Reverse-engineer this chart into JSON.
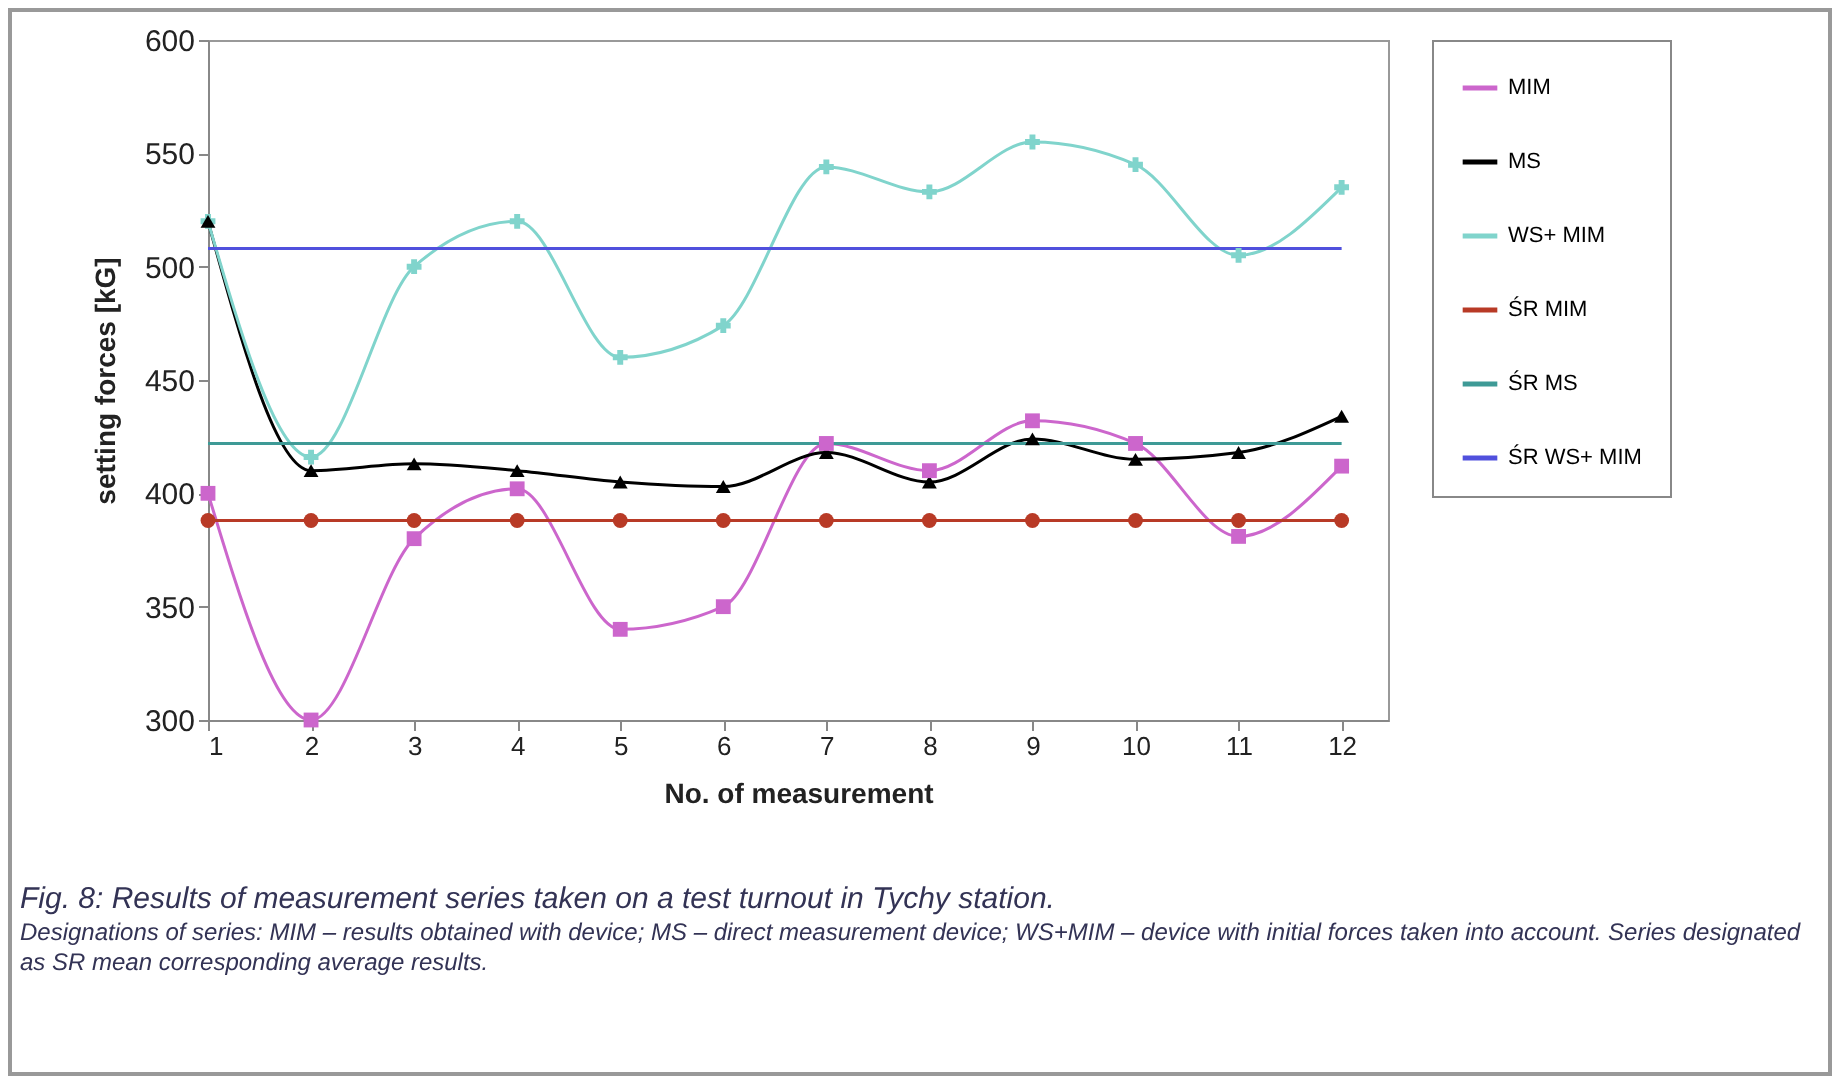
{
  "chart_data": {
    "type": "line",
    "xlabel": "No. of measurement",
    "ylabel": "setting forces [kG]",
    "x": [
      1,
      2,
      3,
      4,
      5,
      6,
      7,
      8,
      9,
      10,
      11,
      12
    ],
    "xlim": [
      1,
      12.45
    ],
    "xticks": [
      1,
      2,
      3,
      4,
      5,
      6,
      7,
      8,
      9,
      10,
      11,
      12
    ],
    "ylim": [
      300,
      600
    ],
    "yticks": [
      300,
      350,
      400,
      450,
      500,
      550,
      600
    ],
    "grid": false,
    "legend": "right",
    "line_style": "solid",
    "series": [
      {
        "name": "MIM",
        "color": "#cc66cc",
        "marker": "square",
        "values": [
          400,
          300,
          380,
          402,
          340,
          350,
          422,
          410,
          432,
          422,
          381,
          412
        ]
      },
      {
        "name": "MS",
        "color": "#000000",
        "marker": "triangle",
        "values": [
          520,
          410,
          413,
          410,
          405,
          403,
          418,
          405,
          424,
          415,
          418,
          434
        ]
      },
      {
        "name": "WS+ MIM",
        "color": "#80d4cc",
        "marker": "cross",
        "values": [
          520,
          416,
          500,
          520,
          460,
          474,
          544,
          533,
          555,
          545,
          505,
          535
        ]
      },
      {
        "name": "ŚR MIM",
        "color": "#b83a26",
        "marker": "circle",
        "values": [
          388,
          388,
          388,
          388,
          388,
          388,
          388,
          388,
          388,
          388,
          388,
          388
        ]
      },
      {
        "name": "ŚR MS",
        "color": "#3e9a96",
        "marker": "none",
        "values": [
          422,
          422,
          422,
          422,
          422,
          422,
          422,
          422,
          422,
          422,
          422,
          422
        ]
      },
      {
        "name": "ŚR WS+ MIM",
        "color": "#5050dd",
        "marker": "none",
        "values": [
          508,
          508,
          508,
          508,
          508,
          508,
          508,
          508,
          508,
          508,
          508,
          508
        ]
      }
    ],
    "annotations": [
      "Fig. 8: Results of measurement series taken on a test turnout in Tychy station.",
      "Designations of series: MIM – results obtained with device; MS – direct measurement device; WS+MIM – device with initial forces taken into account. Series designated as SR mean corresponding average results."
    ]
  }
}
